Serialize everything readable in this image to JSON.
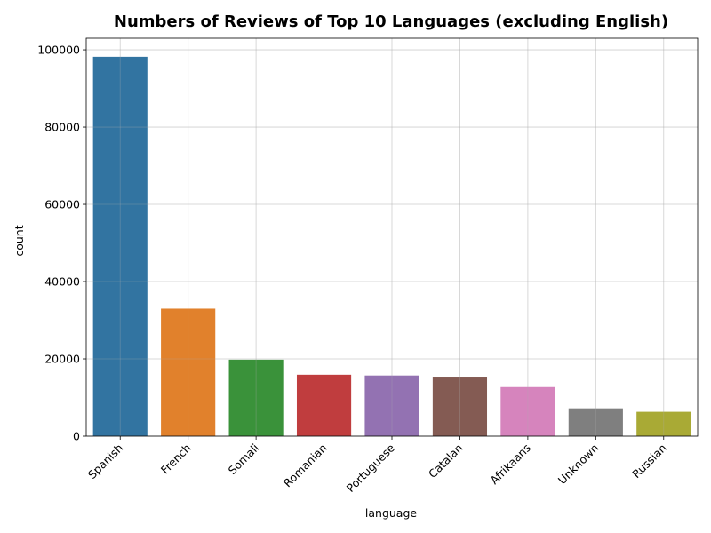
{
  "chart_data": {
    "type": "bar",
    "title": "Numbers of Reviews of Top 10 Languages (excluding English)",
    "xlabel": "language",
    "ylabel": "count",
    "categories": [
      "Spanish",
      "French",
      "Somali",
      "Romanian",
      "Portuguese",
      "Catalan",
      "Afrikaans",
      "Unknown",
      "Russian"
    ],
    "values": [
      98200,
      33000,
      19800,
      15900,
      15700,
      15400,
      12700,
      7200,
      6300
    ],
    "colors": [
      "#3274a1",
      "#e1812c",
      "#3a923a",
      "#c03d3e",
      "#9372b2",
      "#845b53",
      "#d684bd",
      "#7f7f7f",
      "#a9aa35"
    ],
    "ylim": [
      0,
      103000
    ],
    "yticks": [
      0,
      20000,
      40000,
      60000,
      80000,
      100000
    ],
    "grid": true,
    "xtick_rotation": 45
  }
}
